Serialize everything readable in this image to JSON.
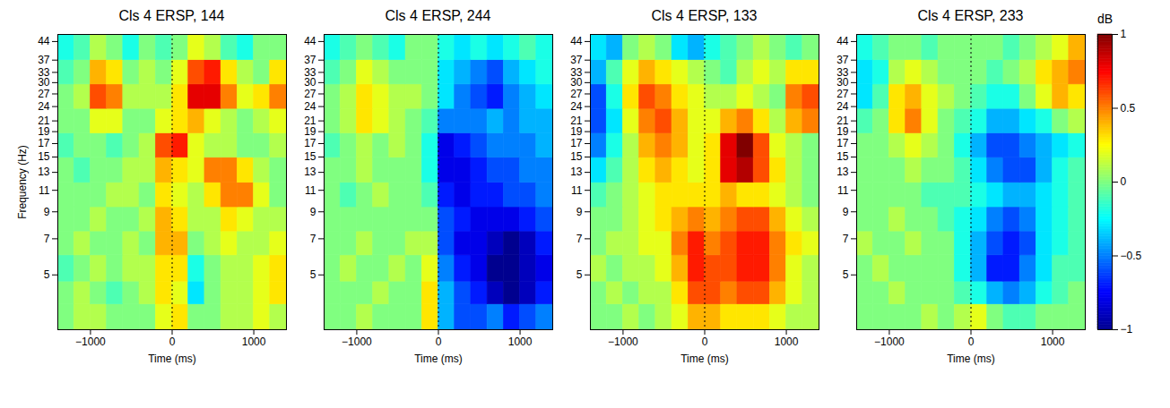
{
  "chart_data": {
    "type": "heatmap",
    "xlabel": "Time (ms)",
    "ylabel": "Frequency (Hz)",
    "log": "y",
    "xlim": [
      -1400,
      1400
    ],
    "xticks": [
      -1000,
      0,
      1000
    ],
    "ylim": [
      3,
      47
    ],
    "yticks": [
      5,
      7,
      9,
      11,
      13,
      15,
      17,
      19,
      21,
      24,
      27,
      30,
      33,
      37,
      44
    ],
    "x_bins": [
      -1400,
      -1200,
      -1000,
      -800,
      -600,
      -400,
      -200,
      0,
      200,
      400,
      600,
      800,
      1000,
      1200,
      1400
    ],
    "y_bins": [
      3,
      3.8,
      4.7,
      6,
      7.5,
      9.4,
      11.8,
      14.9,
      18.7,
      23.5,
      29.5,
      37,
      47
    ],
    "vlines": [
      0
    ],
    "colorbar": {
      "label": "dB",
      "range": [
        -1,
        1
      ],
      "ticks": [
        -1,
        -0.5,
        0,
        0.5,
        1
      ]
    },
    "panels": [
      {
        "title": "Cls 4 ERSP, 144",
        "values": [
          [
            0,
            0.1,
            0.1,
            0,
            0,
            0,
            0.2,
            0.3,
            0,
            0,
            0.1,
            0.1,
            0.2,
            0.1
          ],
          [
            0,
            0.1,
            0,
            -0.1,
            0,
            0.1,
            0.3,
            0.2,
            -0.3,
            0,
            0.1,
            0.1,
            0.2,
            0.3
          ],
          [
            -0.1,
            0,
            0.1,
            0,
            0.1,
            0.1,
            0.3,
            0.3,
            -0.2,
            0,
            0.1,
            0.1,
            0.2,
            0.3
          ],
          [
            0,
            0.1,
            0,
            0,
            0.1,
            0,
            0.4,
            0.4,
            0,
            0.1,
            0.2,
            0.1,
            0.1,
            0.2
          ],
          [
            0,
            0,
            0.1,
            0,
            0,
            0.1,
            0.4,
            0.3,
            0.1,
            0.1,
            0.3,
            0.2,
            0.1,
            0.1
          ],
          [
            0,
            0,
            0,
            0.1,
            0.1,
            0,
            0.3,
            0.2,
            0.1,
            0.3,
            0.5,
            0.5,
            0.2,
            0
          ],
          [
            0,
            -0.1,
            0,
            0,
            0.1,
            0.1,
            0.4,
            0.3,
            0.2,
            0.5,
            0.5,
            0.3,
            0.1,
            0
          ],
          [
            -0.1,
            0,
            0,
            -0.1,
            0,
            0.1,
            0.6,
            0.7,
            0.2,
            0.1,
            0.1,
            0,
            0,
            0.1
          ],
          [
            0,
            0,
            0.2,
            0.2,
            0,
            0,
            0.2,
            0.3,
            0.4,
            0.2,
            0.1,
            0,
            0.1,
            0.2
          ],
          [
            0,
            0.1,
            0.6,
            0.5,
            0.1,
            0.1,
            0.1,
            0.3,
            0.8,
            0.8,
            0.5,
            0.2,
            0.3,
            0.5
          ],
          [
            -0.1,
            0,
            0.4,
            0.3,
            0,
            0.1,
            0,
            0.2,
            0.6,
            0.7,
            0.3,
            0.1,
            0,
            0.3
          ],
          [
            -0.2,
            -0.1,
            0.1,
            0,
            -0.2,
            0,
            -0.1,
            0,
            0.2,
            0.1,
            -0.1,
            -0.2,
            0,
            0
          ]
        ]
      },
      {
        "title": "Cls 4 ERSP, 244",
        "values": [
          [
            0,
            0,
            0.1,
            0,
            0,
            0,
            0.3,
            -0.4,
            -0.6,
            -0.6,
            -0.5,
            -0.7,
            -0.6,
            -0.5
          ],
          [
            0,
            0,
            0,
            0.1,
            0,
            0,
            0.3,
            -0.4,
            -0.6,
            -0.7,
            -0.9,
            -1,
            -0.9,
            -0.7
          ],
          [
            0,
            0.1,
            0,
            0,
            0.1,
            0,
            0.2,
            -0.5,
            -0.7,
            -0.8,
            -1,
            -1,
            -0.9,
            -0.8
          ],
          [
            0,
            0,
            0.1,
            0,
            0,
            0.1,
            0.1,
            -0.6,
            -0.8,
            -0.8,
            -0.9,
            -1,
            -0.9,
            -0.7
          ],
          [
            0,
            0,
            0,
            0,
            0,
            0,
            0,
            -0.6,
            -0.7,
            -0.8,
            -0.8,
            -0.8,
            -0.7,
            -0.6
          ],
          [
            0,
            -0.1,
            0,
            0.1,
            0,
            0,
            -0.1,
            -0.7,
            -0.8,
            -0.7,
            -0.7,
            -0.6,
            -0.6,
            -0.5
          ],
          [
            0,
            0,
            0.1,
            0,
            0,
            0,
            -0.2,
            -0.8,
            -0.8,
            -0.7,
            -0.6,
            -0.6,
            -0.5,
            -0.5
          ],
          [
            -0.1,
            0,
            0.1,
            0,
            0.1,
            0,
            -0.2,
            -0.8,
            -0.7,
            -0.6,
            -0.5,
            -0.5,
            -0.5,
            -0.4
          ],
          [
            0,
            0.1,
            0.3,
            0.2,
            0.1,
            0,
            -0.1,
            -0.5,
            -0.5,
            -0.5,
            -0.4,
            -0.5,
            -0.4,
            -0.4
          ],
          [
            0,
            0.1,
            0.3,
            0.2,
            0.1,
            0.1,
            0,
            -0.3,
            -0.5,
            -0.6,
            -0.7,
            -0.5,
            -0.4,
            -0.3
          ],
          [
            -0.1,
            0,
            0.2,
            0.1,
            0,
            0,
            0,
            -0.3,
            -0.4,
            -0.5,
            -0.6,
            -0.4,
            -0.3,
            -0.2
          ],
          [
            -0.2,
            -0.1,
            0,
            -0.1,
            -0.2,
            0,
            0,
            -0.2,
            -0.3,
            -0.2,
            -0.3,
            -0.2,
            -0.1,
            -0.2
          ]
        ]
      },
      {
        "title": "Cls 4 ERSP, 133",
        "values": [
          [
            0,
            0,
            0.1,
            0,
            0.1,
            0.2,
            0.4,
            0.4,
            0.3,
            0.3,
            0.3,
            0.2,
            0.1,
            0.1
          ],
          [
            0,
            0.1,
            0,
            0.1,
            0.1,
            0.3,
            0.6,
            0.6,
            0.5,
            0.6,
            0.6,
            0.4,
            0.2,
            0.1
          ],
          [
            0.1,
            0,
            0.1,
            0.1,
            0.2,
            0.4,
            0.7,
            0.6,
            0.6,
            0.7,
            0.7,
            0.5,
            0.2,
            0.1
          ],
          [
            0,
            0.1,
            0.1,
            0.2,
            0.2,
            0.5,
            0.7,
            0.5,
            0.6,
            0.7,
            0.7,
            0.5,
            0.3,
            0.2
          ],
          [
            0,
            0,
            0.1,
            0.2,
            0.3,
            0.4,
            0.5,
            0.4,
            0.5,
            0.6,
            0.6,
            0.4,
            0.2,
            0.1
          ],
          [
            -0.1,
            0,
            0.1,
            0.2,
            0.3,
            0.3,
            0.3,
            0.3,
            0.4,
            0.3,
            0.3,
            0.2,
            0.1,
            0
          ],
          [
            -0.3,
            -0.1,
            0.1,
            0.3,
            0.4,
            0.3,
            0.2,
            0.3,
            0.8,
            0.9,
            0.6,
            0.3,
            0.1,
            0
          ],
          [
            -0.5,
            -0.2,
            0.1,
            0.4,
            0.5,
            0.4,
            0.2,
            0.3,
            0.8,
            1,
            0.6,
            0.2,
            0.1,
            0
          ],
          [
            -0.6,
            -0.3,
            0.2,
            0.5,
            0.6,
            0.4,
            0.2,
            0.2,
            0.4,
            0.5,
            0.3,
            0.1,
            0.4,
            0.5
          ],
          [
            -0.6,
            -0.2,
            0.3,
            0.6,
            0.5,
            0.3,
            0.2,
            0.1,
            0.1,
            0.2,
            0.1,
            0,
            0.5,
            0.6
          ],
          [
            -0.4,
            -0.1,
            0.2,
            0.4,
            0.3,
            0.2,
            0.1,
            0,
            -0.1,
            0.1,
            0.2,
            0.1,
            0.3,
            0.3
          ],
          [
            -0.3,
            -0.4,
            0,
            0.1,
            0,
            -0.3,
            -0.4,
            -0.2,
            -0.1,
            0,
            0.1,
            0,
            -0.1,
            0
          ]
        ]
      },
      {
        "title": "Cls 4 ERSP, 233",
        "values": [
          [
            0,
            0,
            0,
            0,
            0.1,
            0,
            0.1,
            0.2,
            0,
            -0.1,
            -0.1,
            0,
            0,
            0
          ],
          [
            0,
            0,
            0.1,
            0,
            0,
            0,
            -0.1,
            -0.2,
            -0.4,
            -0.5,
            -0.4,
            -0.2,
            -0.1,
            0
          ],
          [
            0,
            0.1,
            0,
            0,
            0,
            0,
            -0.2,
            -0.4,
            -0.7,
            -0.7,
            -0.5,
            -0.3,
            -0.1,
            -0.1
          ],
          [
            0.1,
            0,
            0,
            0.1,
            0,
            0,
            -0.2,
            -0.4,
            -0.6,
            -0.7,
            -0.6,
            -0.3,
            -0.2,
            -0.1
          ],
          [
            0,
            0,
            0.1,
            0,
            0,
            -0.1,
            -0.2,
            -0.3,
            -0.5,
            -0.6,
            -0.5,
            -0.3,
            -0.2,
            -0.1
          ],
          [
            0,
            0,
            0,
            0,
            -0.1,
            -0.1,
            -0.1,
            -0.2,
            -0.3,
            -0.4,
            -0.4,
            -0.3,
            -0.2,
            -0.1
          ],
          [
            0,
            0,
            0,
            0.1,
            0,
            0,
            -0.1,
            -0.3,
            -0.5,
            -0.6,
            -0.6,
            -0.4,
            -0.2,
            -0.1
          ],
          [
            0,
            0,
            0.1,
            0.2,
            0.1,
            0,
            -0.2,
            -0.4,
            -0.6,
            -0.6,
            -0.5,
            -0.4,
            -0.3,
            -0.2
          ],
          [
            -0.1,
            0,
            0.3,
            0.5,
            0.2,
            0,
            -0.1,
            -0.2,
            -0.4,
            -0.4,
            -0.3,
            -0.2,
            0,
            0.1
          ],
          [
            -0.3,
            -0.1,
            0.3,
            0.4,
            0.2,
            0.1,
            0,
            -0.1,
            -0.2,
            -0.2,
            0,
            0.2,
            0.4,
            0.3
          ],
          [
            -0.3,
            -0.2,
            0.1,
            0.2,
            0.1,
            0,
            0,
            0,
            -0.1,
            0,
            0.1,
            0.3,
            0.4,
            0.5
          ],
          [
            -0.2,
            -0.1,
            0,
            0,
            -0.1,
            0,
            0,
            0,
            0,
            -0.1,
            0,
            0.1,
            0.2,
            0.4
          ]
        ]
      }
    ]
  }
}
